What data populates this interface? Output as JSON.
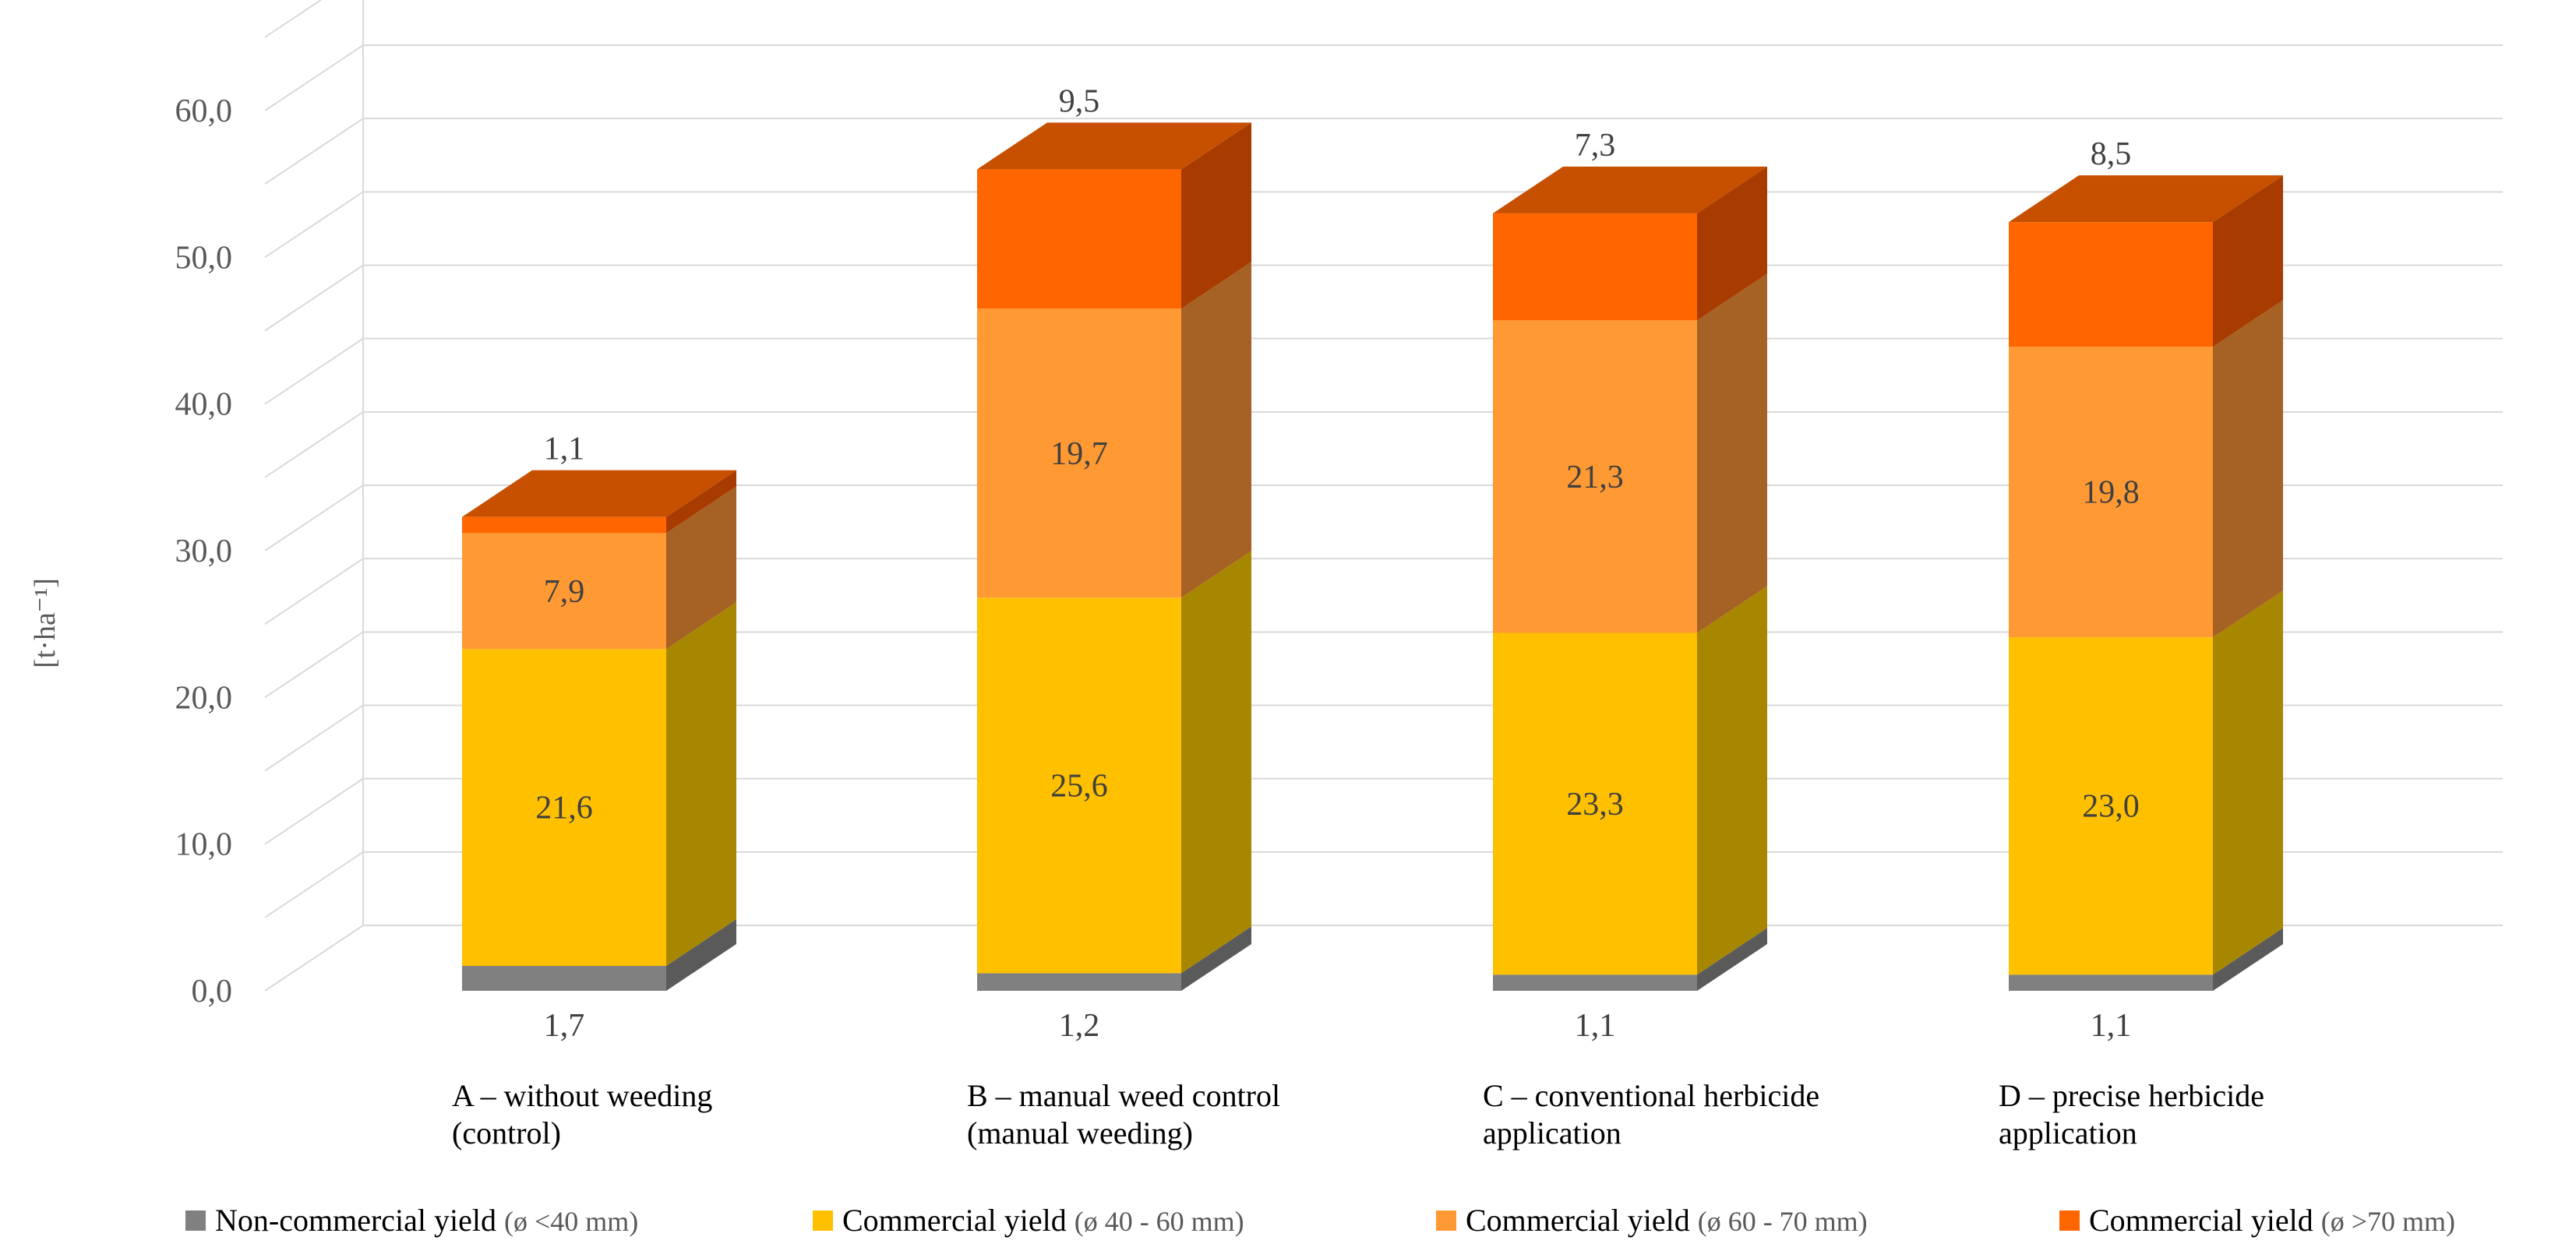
{
  "chart_data": {
    "type": "bar",
    "stacked": true,
    "three_d": true,
    "title": "",
    "xlabel": "",
    "ylabel": "[t·ha⁻¹]",
    "ylim": [
      0,
      60
    ],
    "yticks": [
      "0,0",
      "10,0",
      "20,0",
      "30,0",
      "40,0",
      "50,0",
      "60,0"
    ],
    "ytick_values": [
      0,
      10,
      20,
      30,
      40,
      50,
      60
    ],
    "categories": [
      [
        "A – without weeding",
        "(control)"
      ],
      [
        "B – manual weed control",
        "(manual weeding)"
      ],
      [
        "C – conventional herbicide",
        "application"
      ],
      [
        "D – precise herbicide",
        "application"
      ]
    ],
    "series": [
      {
        "name": "Non-commercial yield",
        "range": "(ø <40 mm)",
        "color": "#808080",
        "side": "#5a5a5a",
        "top": "#6e6e6e",
        "values": [
          1.7,
          1.2,
          1.1,
          1.1
        ],
        "labels": [
          "1,7",
          "1,2",
          "1,1",
          "1,1"
        ]
      },
      {
        "name": "Commercial yield",
        "range": "(ø 40 - 60 mm)",
        "color": "#ffc000",
        "side": "#a88700",
        "top": "#d9a300",
        "values": [
          21.6,
          25.6,
          23.3,
          23.0
        ],
        "labels": [
          "21,6",
          "25,6",
          "23,3",
          "23,0"
        ]
      },
      {
        "name": "Commercial yield",
        "range": "(ø 60 - 70 mm)",
        "color": "#ff9933",
        "side": "#a66124",
        "top": "#d47a26",
        "values": [
          7.9,
          19.7,
          21.3,
          19.8
        ],
        "labels": [
          "7,9",
          "19,7",
          "21,3",
          "19,8"
        ]
      },
      {
        "name": "Commercial yield",
        "range": "(ø >70 mm)",
        "color": "#ff6600",
        "side": "#a83c00",
        "top": "#c65000",
        "values": [
          1.1,
          9.5,
          7.3,
          8.5
        ],
        "labels": [
          "1,1",
          "9,5",
          "7,3",
          "8,5"
        ]
      }
    ],
    "legend_position": "bottom",
    "grid": true
  }
}
